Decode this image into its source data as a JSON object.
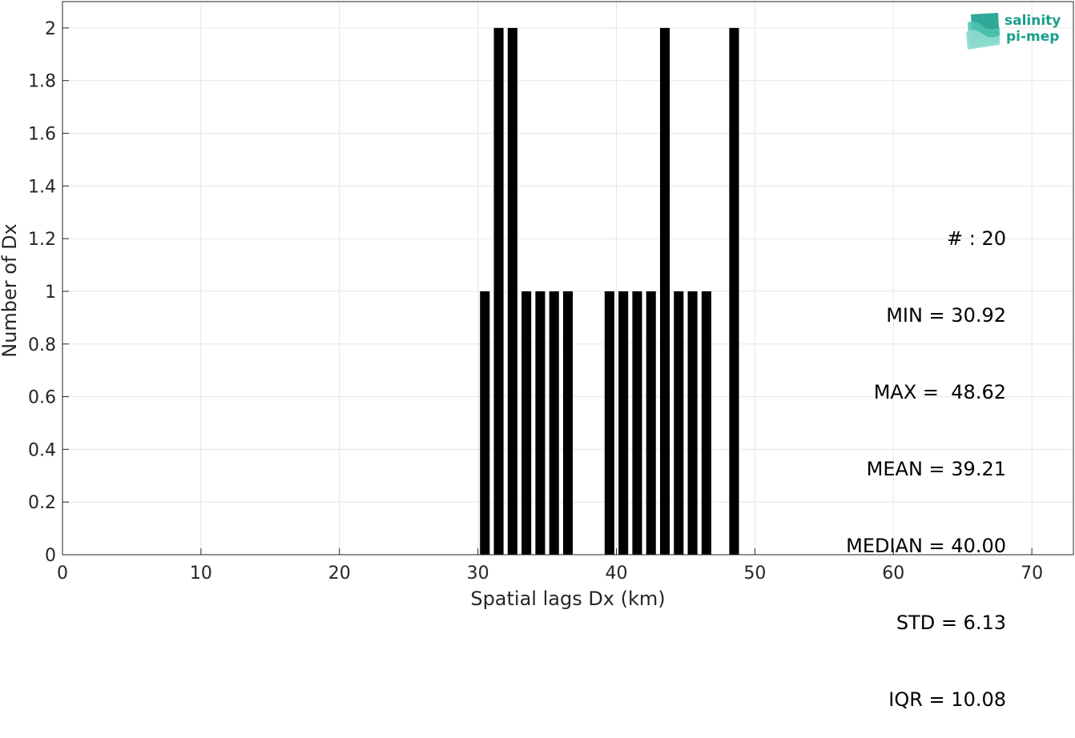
{
  "chart_data": {
    "type": "bar",
    "xlabel": "Spatial lags Dx (km)",
    "ylabel": "Number of Dx",
    "xlim": [
      0,
      73
    ],
    "ylim": [
      0,
      2.1
    ],
    "xticks": [
      0,
      10,
      20,
      30,
      40,
      50,
      60,
      70
    ],
    "yticks": [
      0,
      0.2,
      0.4,
      0.6,
      0.8,
      1,
      1.2,
      1.4,
      1.6,
      1.8,
      2
    ],
    "grid": true,
    "bar_color": "#000000",
    "bar_width": 0.7,
    "bins": [
      {
        "x": 30.5,
        "count": 1
      },
      {
        "x": 31.5,
        "count": 2
      },
      {
        "x": 32.5,
        "count": 2
      },
      {
        "x": 33.5,
        "count": 1
      },
      {
        "x": 34.5,
        "count": 1
      },
      {
        "x": 35.5,
        "count": 1
      },
      {
        "x": 36.5,
        "count": 1
      },
      {
        "x": 39.5,
        "count": 1
      },
      {
        "x": 40.5,
        "count": 1
      },
      {
        "x": 41.5,
        "count": 1
      },
      {
        "x": 42.5,
        "count": 1
      },
      {
        "x": 43.5,
        "count": 2
      },
      {
        "x": 44.5,
        "count": 1
      },
      {
        "x": 45.5,
        "count": 1
      },
      {
        "x": 46.5,
        "count": 1
      },
      {
        "x": 48.5,
        "count": 2
      }
    ]
  },
  "stats": {
    "count": "# : 20",
    "min": "MIN = 30.92",
    "max": "MAX =  48.62",
    "mean": "MEAN = 39.21",
    "median": "MEDIAN = 40.00",
    "std": "STD = 6.13",
    "iqr": "IQR = 10.08"
  },
  "logo": {
    "line1": "salinity",
    "line2": "pi-mep",
    "color": "#1a9e8c"
  }
}
